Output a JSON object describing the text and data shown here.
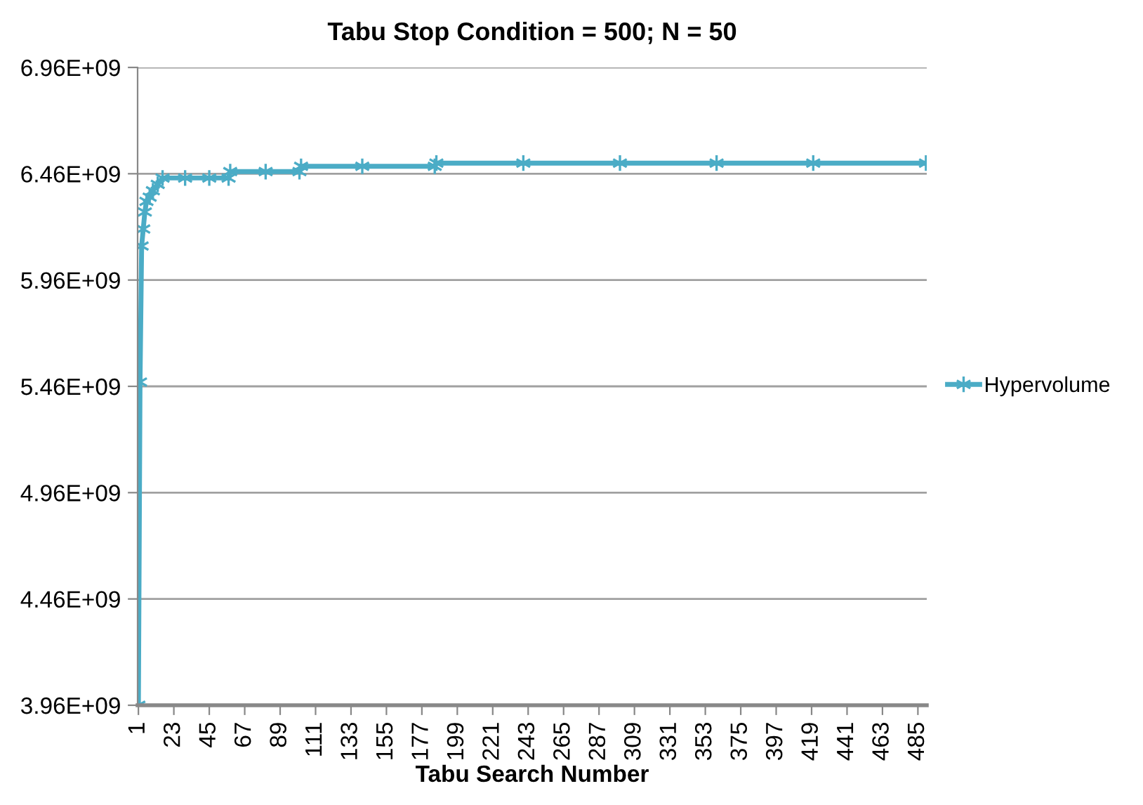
{
  "chart_data": {
    "type": "line",
    "title": "Tabu Stop Condition = 500; N = 50",
    "xlabel": "Tabu Search Number",
    "xlim": [
      0.5,
      490.5
    ],
    "xticks": [
      1,
      23,
      45,
      67,
      89,
      111,
      133,
      155,
      177,
      199,
      221,
      243,
      265,
      287,
      309,
      331,
      353,
      375,
      397,
      419,
      441,
      463,
      485
    ],
    "ylim": [
      3960000000.0,
      6960000000.0
    ],
    "yticks": [
      {
        "value": 3960000000.0,
        "label": "3.96E+09"
      },
      {
        "value": 4460000000.0,
        "label": "4.46E+09"
      },
      {
        "value": 4960000000.0,
        "label": "4.96E+09"
      },
      {
        "value": 5460000000.0,
        "label": "5.46E+09"
      },
      {
        "value": 5960000000.0,
        "label": "5.96E+09"
      },
      {
        "value": 6460000000.0,
        "label": "6.46E+09"
      },
      {
        "value": 6960000000.0,
        "label": "6.96E+09"
      }
    ],
    "grid": "y",
    "legend": "right",
    "marker": "cross",
    "line_style": "solid",
    "series": [
      {
        "name": "Hypervolume",
        "color": "#4bacc6",
        "x": [
          1,
          2,
          3,
          4,
          5,
          6,
          8,
          10,
          13,
          16,
          30,
          45,
          57,
          58,
          80,
          101,
          102,
          140,
          185,
          186,
          240,
          300,
          360,
          420,
          490
        ],
        "values": [
          3960000000.0,
          5480000000.0,
          6120000000.0,
          6200000000.0,
          6280000000.0,
          6330000000.0,
          6350000000.0,
          6380000000.0,
          6410000000.0,
          6440000000.0,
          6440000000.0,
          6440000000.0,
          6440000000.0,
          6470000000.0,
          6470000000.0,
          6470000000.0,
          6495000000.0,
          6495000000.0,
          6495000000.0,
          6510000000.0,
          6510000000.0,
          6510000000.0,
          6510000000.0,
          6510000000.0,
          6510000000.0
        ]
      }
    ]
  }
}
